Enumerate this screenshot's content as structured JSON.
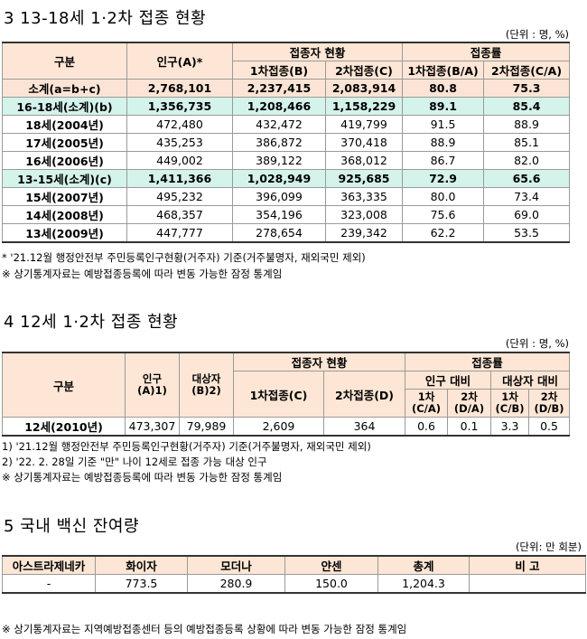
{
  "section1": {
    "title": "3  13-18세 1·2차 접종 현황",
    "unit": "(단위 : 명, %)",
    "headers": {
      "category": "구분",
      "population": "인구(A)*",
      "vaccinated": "접종자 현황",
      "dose1": "1차접종(B)",
      "dose2": "2차접종(C)",
      "rate": "접종률",
      "rate1": "1차접종(B/A)",
      "rate2": "2차접종(C/A)"
    },
    "rows": [
      {
        "label": "소계(a=b+c)",
        "pop": "2,768,101",
        "d1": "2,237,415",
        "d2": "2,083,914",
        "r1": "80.8",
        "r2": "75.3"
      },
      {
        "label": "16-18세(소계)(b)",
        "pop": "1,356,735",
        "d1": "1,208,466",
        "d2": "1,158,229",
        "r1": "89.1",
        "r2": "85.4"
      },
      {
        "label": "18세(2004년)",
        "pop": "472,480",
        "d1": "432,472",
        "d2": "419,799",
        "r1": "91.5",
        "r2": "88.9"
      },
      {
        "label": "17세(2005년)",
        "pop": "435,253",
        "d1": "386,872",
        "d2": "370,418",
        "r1": "88.9",
        "r2": "85.1"
      },
      {
        "label": "16세(2006년)",
        "pop": "449,002",
        "d1": "389,122",
        "d2": "368,012",
        "r1": "86.7",
        "r2": "82.0"
      },
      {
        "label": "13-15세(소계)(c)",
        "pop": "1,411,366",
        "d1": "1,028,949",
        "d2": "925,685",
        "r1": "72.9",
        "r2": "65.6"
      },
      {
        "label": "15세(2007년)",
        "pop": "495,232",
        "d1": "396,099",
        "d2": "363,335",
        "r1": "80.0",
        "r2": "73.4"
      },
      {
        "label": "14세(2008년)",
        "pop": "468,357",
        "d1": "354,196",
        "d2": "323,008",
        "r1": "75.6",
        "r2": "69.0"
      },
      {
        "label": "13세(2009년)",
        "pop": "447,777",
        "d1": "278,654",
        "d2": "239,342",
        "r1": "62.2",
        "r2": "53.5"
      }
    ],
    "note1": "* '21.12월 행정안전부 주민등록인구현황(거주자) 기준(거주불명자, 재외국민 제외)",
    "note2": "※ 상기통계자료는 예방접종등록에 따라 변동 가능한 잠정 통계임"
  },
  "section2": {
    "title": "4  12세 1·2차 접종 현황",
    "unit": "(단위 : 명, %)",
    "headers": {
      "category": "구분",
      "population": "인구",
      "population_sub": "(A)1)",
      "target": "대상자",
      "target_sub": "(B)2)",
      "vaccinated": "접종자 현황",
      "dose1": "1차접종(C)",
      "dose2": "2차접종(D)",
      "rate": "접종률",
      "vs_pop": "인구 대비",
      "vs_target": "대상자 대비",
      "c1a": "1차",
      "c1b": "(C/A)",
      "c2a": "2차",
      "c2b": "(D/A)",
      "c3a": "1차",
      "c3b": "(C/B)",
      "c4a": "2차",
      "c4b": "(D/B)"
    },
    "row": {
      "label": "12세(2010년)",
      "pop": "473,307",
      "target": "79,989",
      "d1": "2,609",
      "d2": "364",
      "r1": "0.6",
      "r2": "0.1",
      "r3": "3.3",
      "r4": "0.5"
    },
    "note1": "1) '21.12월 행정안전부 주민등록인구현황(거주자) 기준(거주불명자, 재외국민 제외)",
    "note2": "2) '22. 2. 28일 기준 \"만\" 나이 12세로 접종 가능 대상 인구",
    "note3": "※ 상기통계자료는 예방접종등록에 따라 변동 가능한 잠정 통계임"
  },
  "section3": {
    "title": "5  국내 백신 잔여량",
    "unit": "(단위: 만 회분)",
    "headers": [
      "아스트라제네카",
      "화이자",
      "모더나",
      "얀센",
      "총계",
      "비 고"
    ],
    "values": [
      "-",
      "773.5",
      "280.9",
      "150.0",
      "1,204.3",
      ""
    ],
    "note": "※ 상기통계자료는 지역예방접종센터 등의 예방접종등록 상황에 따라 변동 가능한 잠정 통계임"
  }
}
